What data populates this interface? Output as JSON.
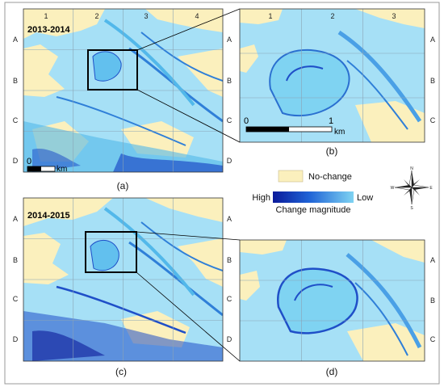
{
  "panels": [
    {
      "id": "a",
      "caption": "(a)",
      "period": "2013-2014",
      "col_ticks": [
        "1",
        "2",
        "3",
        "4"
      ],
      "row_ticks": [
        "A",
        "B",
        "C",
        "D"
      ],
      "scale": {
        "start": "0",
        "unit": "km"
      }
    },
    {
      "id": "b",
      "caption": "(b)",
      "col_ticks": [
        "1",
        "2",
        "3"
      ],
      "row_ticks": [
        "A",
        "B",
        "C"
      ],
      "scale": {
        "start": "0",
        "end": "1",
        "unit": "km"
      }
    },
    {
      "id": "c",
      "caption": "(c)",
      "period": "2014-2015",
      "row_ticks": [
        "A",
        "B",
        "C",
        "D"
      ]
    },
    {
      "id": "d",
      "caption": "(d)",
      "row_ticks": [
        "A",
        "B",
        "C"
      ]
    }
  ],
  "legend": {
    "no_change_label": "No-change",
    "no_change_color": "#fbf0bd",
    "high_label": "High",
    "low_label": "Low",
    "magnitude_title": "Change magnitude",
    "gradient_colors": [
      "#0b1a9a",
      "#1f63d6",
      "#7fd3f2"
    ]
  },
  "compass": {
    "n": "N",
    "s": "S",
    "e": "E",
    "w": "W"
  },
  "palette": {
    "water_light": "#a6e0f6",
    "water_mid": "#52b8ea",
    "deep": "#1f4fc8",
    "land": "#fbf0bd"
  }
}
